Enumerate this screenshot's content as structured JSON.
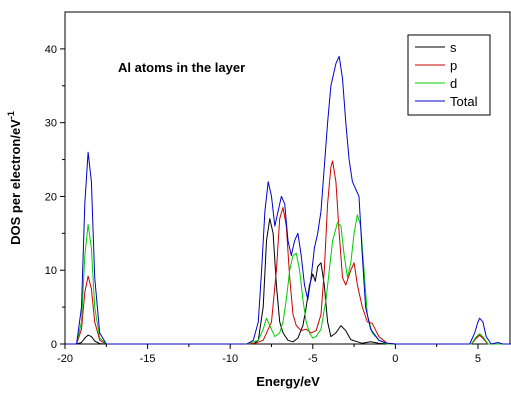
{
  "chart_data": {
    "type": "line",
    "title": "",
    "xlabel": "Energy/eV",
    "ylabel_main": "DOS per electron/eV",
    "ylabel_sup": "-1",
    "annotation": "Al atoms in the layer",
    "xlim": [
      -20,
      7
    ],
    "ylim": [
      0,
      45
    ],
    "xticks": [
      -20,
      -15,
      -10,
      -5,
      0,
      5
    ],
    "xtick_labels": [
      "-20",
      "-15",
      "-10",
      "-5",
      "0",
      "5"
    ],
    "yticks": [
      0,
      10,
      20,
      30,
      40
    ],
    "ytick_labels": [
      "0",
      "10",
      "20",
      "30",
      "40"
    ],
    "grid": false,
    "legend_position": "top-right",
    "series": [
      {
        "name": "s",
        "color": "#000000",
        "points": [
          [
            -20,
            0
          ],
          [
            -19.3,
            0
          ],
          [
            -19.0,
            0.2
          ],
          [
            -18.8,
            0.8
          ],
          [
            -18.6,
            1.2
          ],
          [
            -18.4,
            1.0
          ],
          [
            -18.2,
            0.4
          ],
          [
            -17.9,
            0.05
          ],
          [
            -17.5,
            0
          ],
          [
            -8.6,
            0
          ],
          [
            -8.3,
            0.5
          ],
          [
            -8.0,
            5
          ],
          [
            -7.8,
            14
          ],
          [
            -7.6,
            17
          ],
          [
            -7.4,
            15
          ],
          [
            -7.2,
            8
          ],
          [
            -7.0,
            3
          ],
          [
            -6.8,
            1.5
          ],
          [
            -6.5,
            0.5
          ],
          [
            -6.2,
            0.3
          ],
          [
            -5.9,
            0.8
          ],
          [
            -5.6,
            2.5
          ],
          [
            -5.4,
            5
          ],
          [
            -5.2,
            8
          ],
          [
            -5.0,
            9.5
          ],
          [
            -4.85,
            8.5
          ],
          [
            -4.7,
            10.5
          ],
          [
            -4.5,
            11
          ],
          [
            -4.3,
            8
          ],
          [
            -4.1,
            3
          ],
          [
            -3.9,
            1
          ],
          [
            -3.6,
            1.5
          ],
          [
            -3.3,
            2.5
          ],
          [
            -3.0,
            1.8
          ],
          [
            -2.7,
            0.6
          ],
          [
            -2.3,
            0.3
          ],
          [
            -2.0,
            0.1
          ],
          [
            -1.5,
            0.3
          ],
          [
            -1.0,
            0.1
          ],
          [
            -0.5,
            0
          ],
          [
            4.6,
            0
          ],
          [
            4.9,
            0.8
          ],
          [
            5.1,
            1.2
          ],
          [
            5.3,
            0.8
          ],
          [
            5.6,
            0
          ],
          [
            7,
            0
          ]
        ]
      },
      {
        "name": "p",
        "color": "#cc0000",
        "points": [
          [
            -20,
            0
          ],
          [
            -19.3,
            0
          ],
          [
            -19.0,
            2
          ],
          [
            -18.8,
            7
          ],
          [
            -18.6,
            9.2
          ],
          [
            -18.4,
            7.5
          ],
          [
            -18.2,
            3
          ],
          [
            -17.9,
            0.5
          ],
          [
            -17.5,
            0
          ],
          [
            -9.0,
            0
          ],
          [
            -8.5,
            0.1
          ],
          [
            -8.0,
            0.5
          ],
          [
            -7.5,
            3
          ],
          [
            -7.2,
            10
          ],
          [
            -7.0,
            17
          ],
          [
            -6.8,
            18.5
          ],
          [
            -6.6,
            16
          ],
          [
            -6.4,
            9
          ],
          [
            -6.2,
            4
          ],
          [
            -6.0,
            2.5
          ],
          [
            -5.7,
            1.8
          ],
          [
            -5.4,
            2
          ],
          [
            -5.1,
            1.5
          ],
          [
            -4.8,
            1.8
          ],
          [
            -4.5,
            4
          ],
          [
            -4.3,
            10
          ],
          [
            -4.1,
            19
          ],
          [
            -3.9,
            24
          ],
          [
            -3.8,
            24.8
          ],
          [
            -3.6,
            22
          ],
          [
            -3.4,
            15
          ],
          [
            -3.2,
            9
          ],
          [
            -3.0,
            8
          ],
          [
            -2.7,
            10
          ],
          [
            -2.5,
            11
          ],
          [
            -2.3,
            8
          ],
          [
            -2.0,
            5
          ],
          [
            -1.7,
            3
          ],
          [
            -1.4,
            2.8
          ],
          [
            -1.0,
            1
          ],
          [
            -0.5,
            0.1
          ],
          [
            0,
            0
          ],
          [
            4.6,
            0
          ],
          [
            4.9,
            0.8
          ],
          [
            5.1,
            1.2
          ],
          [
            5.3,
            0.8
          ],
          [
            5.6,
            0
          ],
          [
            7,
            0
          ]
        ]
      },
      {
        "name": "d",
        "color": "#00cc00",
        "points": [
          [
            -20,
            0
          ],
          [
            -19.3,
            0
          ],
          [
            -19.0,
            3
          ],
          [
            -18.8,
            12
          ],
          [
            -18.6,
            16.2
          ],
          [
            -18.4,
            13
          ],
          [
            -18.2,
            5
          ],
          [
            -17.9,
            0.8
          ],
          [
            -17.5,
            0
          ],
          [
            -9.0,
            0
          ],
          [
            -8.3,
            0.5
          ],
          [
            -8.0,
            2
          ],
          [
            -7.8,
            3.5
          ],
          [
            -7.6,
            2.5
          ],
          [
            -7.3,
            1
          ],
          [
            -7.0,
            1.5
          ],
          [
            -6.8,
            3
          ],
          [
            -6.6,
            6
          ],
          [
            -6.4,
            10
          ],
          [
            -6.2,
            12
          ],
          [
            -6.0,
            12.3
          ],
          [
            -5.8,
            10
          ],
          [
            -5.6,
            6
          ],
          [
            -5.4,
            3
          ],
          [
            -5.2,
            1.5
          ],
          [
            -5.0,
            0.8
          ],
          [
            -4.8,
            1
          ],
          [
            -4.5,
            2
          ],
          [
            -4.2,
            6
          ],
          [
            -4.0,
            10
          ],
          [
            -3.8,
            14
          ],
          [
            -3.5,
            16.5
          ],
          [
            -3.3,
            16
          ],
          [
            -3.1,
            12
          ],
          [
            -2.9,
            9
          ],
          [
            -2.7,
            11
          ],
          [
            -2.5,
            15
          ],
          [
            -2.3,
            17.5
          ],
          [
            -2.1,
            16
          ],
          [
            -1.9,
            10
          ],
          [
            -1.7,
            4
          ],
          [
            -1.4,
            1.5
          ],
          [
            -1.0,
            0.5
          ],
          [
            -0.5,
            0
          ],
          [
            4.6,
            0
          ],
          [
            4.9,
            1
          ],
          [
            5.1,
            1.4
          ],
          [
            5.3,
            1
          ],
          [
            5.6,
            0
          ],
          [
            7,
            0
          ]
        ]
      },
      {
        "name": "Total",
        "color": "#0000cc",
        "points": [
          [
            -20,
            0
          ],
          [
            -19.3,
            0
          ],
          [
            -19.0,
            5
          ],
          [
            -18.8,
            19
          ],
          [
            -18.6,
            26
          ],
          [
            -18.4,
            22
          ],
          [
            -18.2,
            9
          ],
          [
            -17.9,
            1.5
          ],
          [
            -17.5,
            0
          ],
          [
            -9.0,
            0
          ],
          [
            -8.6,
            0.5
          ],
          [
            -8.3,
            3
          ],
          [
            -8.1,
            10
          ],
          [
            -7.9,
            18
          ],
          [
            -7.7,
            22
          ],
          [
            -7.5,
            20
          ],
          [
            -7.3,
            16
          ],
          [
            -7.1,
            18
          ],
          [
            -6.9,
            20
          ],
          [
            -6.7,
            19
          ],
          [
            -6.5,
            14
          ],
          [
            -6.3,
            12
          ],
          [
            -6.1,
            14
          ],
          [
            -5.9,
            15
          ],
          [
            -5.7,
            12
          ],
          [
            -5.5,
            8
          ],
          [
            -5.3,
            6
          ],
          [
            -5.1,
            9
          ],
          [
            -4.9,
            13
          ],
          [
            -4.7,
            15
          ],
          [
            -4.5,
            18
          ],
          [
            -4.3,
            24
          ],
          [
            -4.1,
            30
          ],
          [
            -3.9,
            35
          ],
          [
            -3.6,
            38
          ],
          [
            -3.4,
            39
          ],
          [
            -3.2,
            36
          ],
          [
            -3.0,
            30
          ],
          [
            -2.8,
            25
          ],
          [
            -2.6,
            22
          ],
          [
            -2.4,
            21
          ],
          [
            -2.2,
            20
          ],
          [
            -2.0,
            12
          ],
          [
            -1.8,
            5
          ],
          [
            -1.5,
            2
          ],
          [
            -1.0,
            0.5
          ],
          [
            -0.5,
            0.1
          ],
          [
            0,
            0
          ],
          [
            4.5,
            0
          ],
          [
            4.8,
            1.5
          ],
          [
            5.0,
            3
          ],
          [
            5.1,
            3.5
          ],
          [
            5.3,
            3
          ],
          [
            5.5,
            1
          ],
          [
            5.8,
            0
          ],
          [
            6.2,
            0.2
          ],
          [
            6.5,
            0
          ],
          [
            7,
            0
          ]
        ]
      }
    ]
  }
}
